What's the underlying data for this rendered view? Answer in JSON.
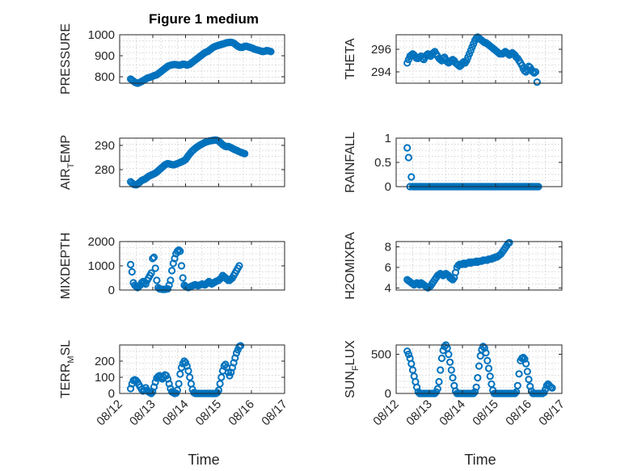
{
  "figure": {
    "title": "Figure 1 medium",
    "xlabel": "Time",
    "x_tick_labels": [
      "08/12",
      "08/13",
      "08/14",
      "08/15",
      "08/16",
      "08/17"
    ],
    "marker_color": "#0072BD"
  },
  "chart_data": [
    {
      "type": "scatter",
      "name": "PRESSURE",
      "ylabel": "PRESSURE",
      "ylim": [
        770,
        1000
      ],
      "yticks": [
        800,
        900,
        1000
      ],
      "xlim": [
        "08/12",
        "08/17"
      ],
      "grid": true,
      "x_start": "08/12 08:00",
      "x_step_hours": 1,
      "values": [
        790,
        785,
        780,
        775,
        772,
        770,
        772,
        775,
        778,
        782,
        786,
        790,
        794,
        796,
        798,
        800,
        803,
        806,
        808,
        810,
        815,
        820,
        825,
        830,
        835,
        840,
        845,
        850,
        853,
        855,
        857,
        858,
        859,
        858,
        857,
        855,
        856,
        858,
        860,
        860,
        858,
        856,
        858,
        860,
        865,
        870,
        875,
        880,
        885,
        890,
        895,
        900,
        905,
        910,
        915,
        918,
        920,
        925,
        930,
        935,
        940,
        943,
        946,
        948,
        950,
        952,
        954,
        956,
        958,
        960,
        962,
        963,
        964,
        964,
        963,
        960,
        955,
        950,
        945,
        942,
        940,
        940,
        942,
        945,
        946,
        944,
        942,
        940,
        938,
        935,
        932,
        930,
        928,
        926,
        924,
        922,
        920,
        921,
        923,
        925,
        924,
        922,
        920
      ]
    },
    {
      "type": "scatter",
      "name": "THETA",
      "ylabel": "THETA",
      "ylim": [
        293,
        297.3
      ],
      "yticks": [
        294,
        296
      ],
      "xlim": [
        "08/12",
        "08/17"
      ],
      "grid": true,
      "x_start": "08/12 08:00",
      "x_step_hours": 1,
      "values": [
        294.8,
        295.1,
        295.4,
        295.5,
        295.6,
        295.5,
        295.3,
        295.2,
        295.2,
        295.3,
        295.4,
        295.2,
        295.1,
        295.3,
        295.5,
        295.6,
        295.5,
        295.4,
        295.6,
        295.7,
        295.8,
        295.6,
        295.4,
        295.2,
        295.1,
        295.0,
        295.2,
        295.3,
        295.1,
        294.9,
        294.8,
        294.9,
        295.0,
        295.1,
        295.0,
        294.8,
        294.7,
        294.6,
        294.5,
        294.6,
        294.8,
        294.9,
        294.8,
        295.0,
        295.3,
        295.6,
        295.9,
        296.2,
        296.5,
        296.8,
        297.0,
        297.1,
        297.0,
        296.9,
        296.8,
        296.7,
        296.6,
        296.6,
        296.5,
        296.4,
        296.3,
        296.2,
        296.1,
        296.0,
        295.9,
        295.8,
        295.7,
        295.6,
        295.6,
        295.6,
        295.7,
        295.8,
        295.7,
        295.6,
        295.5,
        295.6,
        295.7,
        295.6,
        295.5,
        295.3,
        295.2,
        295.0,
        294.8,
        294.6,
        294.3,
        294.1,
        294.0,
        294.2,
        294.5,
        294.4,
        294.2,
        294.0,
        293.9,
        294.0,
        293.1
      ]
    },
    {
      "type": "scatter",
      "name": "AIR_TEMP",
      "ylabel_main": "AIR",
      "ylabel_sub": "T",
      "ylabel_rest": "EMP",
      "ylim": [
        273,
        293
      ],
      "yticks": [
        280,
        290
      ],
      "xlim": [
        "08/12",
        "08/17"
      ],
      "grid": true,
      "x_start": "08/12 08:00",
      "x_step_hours": 1,
      "values": [
        275.0,
        274.5,
        274.0,
        273.8,
        273.7,
        274.0,
        274.5,
        275.0,
        275.5,
        275.8,
        276.0,
        276.3,
        276.8,
        277.2,
        277.5,
        277.8,
        278.0,
        278.3,
        278.6,
        279.0,
        279.5,
        280.0,
        280.5,
        281.0,
        281.5,
        282.0,
        282.3,
        282.5,
        282.4,
        282.2,
        282.1,
        282.0,
        282.1,
        282.3,
        282.5,
        282.7,
        283.0,
        283.2,
        283.5,
        283.8,
        284.2,
        285.0,
        285.8,
        286.5,
        287.2,
        287.8,
        288.3,
        288.8,
        289.2,
        289.6,
        290.0,
        290.3,
        290.6,
        290.9,
        291.2,
        291.4,
        291.6,
        291.8,
        291.9,
        292.0,
        292.1,
        292.2,
        292.2,
        292.1,
        291.8,
        291.3,
        290.8,
        290.3,
        289.9,
        289.6,
        289.5,
        289.6,
        289.4,
        289.1,
        288.8,
        288.5,
        288.2,
        288.0,
        287.7,
        287.4,
        287.2,
        287.0,
        286.8,
        286.6
      ]
    },
    {
      "type": "scatter",
      "name": "RAINFALL",
      "ylabel": "RAINFALL",
      "ylim": [
        0,
        1
      ],
      "yticks": [
        0,
        0.5,
        1
      ],
      "xlim": [
        "08/12",
        "08/17"
      ],
      "grid": true,
      "x_start": "08/12 08:00",
      "x_step_hours": 1,
      "values": [
        0.8,
        0.6,
        0.0,
        0.2,
        0,
        0,
        0,
        0,
        0,
        0,
        0,
        0,
        0,
        0,
        0,
        0,
        0,
        0,
        0,
        0,
        0,
        0,
        0,
        0,
        0,
        0,
        0,
        0,
        0,
        0,
        0,
        0,
        0,
        0,
        0,
        0,
        0,
        0,
        0,
        0,
        0,
        0,
        0,
        0,
        0,
        0,
        0,
        0,
        0,
        0,
        0,
        0,
        0,
        0,
        0,
        0,
        0,
        0,
        0,
        0,
        0,
        0,
        0,
        0,
        0,
        0,
        0,
        0,
        0,
        0,
        0,
        0,
        0,
        0,
        0,
        0,
        0,
        0,
        0,
        0,
        0,
        0,
        0,
        0,
        0,
        0,
        0,
        0,
        0,
        0,
        0,
        0,
        0,
        0,
        0,
        0
      ]
    },
    {
      "type": "scatter",
      "name": "MIXDEPTH",
      "ylabel": "MIXDEPTH",
      "ylim": [
        0,
        2000
      ],
      "yticks": [
        0,
        1000,
        2000
      ],
      "xlim": [
        "08/12",
        "08/17"
      ],
      "grid": true,
      "x_start": "08/12 08:00",
      "x_step_hours": 1,
      "values": [
        1050,
        750,
        300,
        200,
        150,
        100,
        150,
        200,
        300,
        350,
        300,
        250,
        400,
        500,
        600,
        700,
        1300,
        1350,
        900,
        400,
        100,
        50,
        40,
        30,
        30,
        30,
        40,
        50,
        200,
        400,
        800,
        1100,
        1300,
        1500,
        1600,
        1650,
        1600,
        1000,
        500,
        200,
        150,
        120,
        100,
        120,
        150,
        180,
        200,
        220,
        200,
        180,
        200,
        220,
        250,
        230,
        210,
        250,
        300,
        350,
        300,
        250,
        280,
        320,
        350,
        380,
        400,
        450,
        500,
        600,
        550,
        500,
        450,
        400,
        400,
        450,
        500,
        600,
        700,
        800,
        900,
        1000
      ]
    },
    {
      "type": "scatter",
      "name": "H2OMIXRA",
      "ylabel": "H2OMIXRA",
      "ylim": [
        3.8,
        8.5
      ],
      "yticks": [
        4,
        6,
        8
      ],
      "xlim": [
        "08/12",
        "08/17"
      ],
      "grid": true,
      "x_start": "08/12 08:00",
      "x_step_hours": 1,
      "values": [
        4.8,
        4.7,
        4.6,
        4.5,
        4.4,
        4.3,
        4.4,
        4.5,
        4.4,
        4.3,
        4.5,
        4.4,
        4.3,
        4.2,
        4.1,
        4.0,
        4.1,
        4.2,
        4.4,
        4.6,
        4.8,
        5.0,
        5.2,
        5.3,
        5.4,
        5.3,
        5.2,
        5.3,
        5.4,
        5.3,
        5.2,
        5.0,
        4.9,
        4.8,
        5.0,
        5.5,
        6.0,
        6.2,
        6.3,
        6.3,
        6.3,
        6.4,
        6.3,
        6.4,
        6.4,
        6.5,
        6.4,
        6.5,
        6.5,
        6.5,
        6.6,
        6.5,
        6.6,
        6.6,
        6.6,
        6.7,
        6.7,
        6.7,
        6.7,
        6.8,
        6.8,
        6.8,
        6.9,
        6.9,
        7.0,
        7.0,
        7.1,
        7.2,
        7.3,
        7.5,
        7.7,
        7.9,
        8.1,
        8.3,
        8.4
      ]
    },
    {
      "type": "scatter",
      "name": "TERR_MSL",
      "ylabel_main": "TERR",
      "ylabel_sub": "M",
      "ylabel_rest": "SL",
      "ylim": [
        0,
        300
      ],
      "yticks": [
        0,
        100,
        200
      ],
      "xlim": [
        "08/12",
        "08/17"
      ],
      "grid": true,
      "x_start": "08/12 08:00",
      "x_step_hours": 1,
      "values": [
        30,
        60,
        80,
        85,
        80,
        70,
        55,
        40,
        25,
        15,
        20,
        35,
        20,
        10,
        5,
        0,
        10,
        40,
        70,
        95,
        105,
        110,
        100,
        90,
        100,
        115,
        110,
        90,
        60,
        30,
        10,
        5,
        0,
        2,
        20,
        60,
        120,
        160,
        185,
        200,
        190,
        170,
        140,
        100,
        60,
        25,
        5,
        0,
        0,
        0,
        0,
        0,
        0,
        0,
        0,
        0,
        0,
        0,
        0,
        0,
        0,
        0,
        0,
        5,
        20,
        60,
        100,
        140,
        170,
        180,
        160,
        130,
        110,
        130,
        160,
        190,
        220,
        250,
        270,
        290,
        295
      ]
    },
    {
      "type": "scatter",
      "name": "SUN_FLUX",
      "ylabel_main": "SUN",
      "ylabel_sub": "F",
      "ylabel_rest": "LUX",
      "ylim": [
        0,
        620
      ],
      "yticks": [
        0,
        500
      ],
      "xlim": [
        "08/12",
        "08/17"
      ],
      "grid": true,
      "x_start": "08/12 08:00",
      "x_step_hours": 1,
      "values": [
        540,
        500,
        450,
        380,
        300,
        220,
        150,
        80,
        20,
        0,
        0,
        0,
        0,
        0,
        0,
        0,
        0,
        0,
        0,
        0,
        0,
        20,
        60,
        150,
        300,
        450,
        550,
        600,
        620,
        580,
        500,
        400,
        300,
        200,
        100,
        30,
        0,
        0,
        0,
        0,
        0,
        0,
        0,
        0,
        0,
        0,
        0,
        0,
        0,
        20,
        80,
        200,
        350,
        480,
        560,
        600,
        580,
        520,
        420,
        320,
        220,
        120,
        40,
        0,
        0,
        0,
        0,
        0,
        0,
        0,
        0,
        0,
        0,
        0,
        0,
        0,
        0,
        0,
        0,
        20,
        100,
        250,
        420,
        450,
        460,
        440,
        380,
        280,
        180,
        90,
        30,
        0,
        0,
        0,
        0,
        0,
        0,
        0,
        0,
        10,
        50,
        100,
        120,
        100,
        80,
        70
      ]
    }
  ]
}
